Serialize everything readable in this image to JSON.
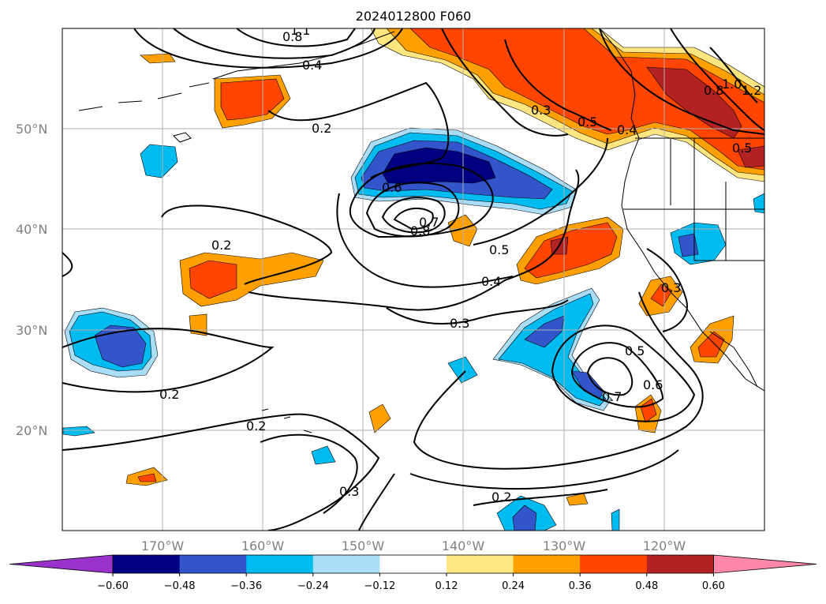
{
  "title": "2024012800 F060",
  "map": {
    "lon_range": [
      -180,
      -110
    ],
    "lat_range": [
      10,
      60
    ],
    "lon_ticks": [
      -170,
      -160,
      -150,
      -140,
      -130,
      -120
    ],
    "lat_ticks": [
      20,
      30,
      40,
      50
    ],
    "lon_tick_labels": [
      "170°W",
      "160°W",
      "150°W",
      "140°W",
      "130°W",
      "120°W"
    ],
    "lat_tick_labels": [
      "20°N",
      "30°N",
      "40°N",
      "50°N"
    ],
    "gridlines": true,
    "contour_labels": [
      "0.8",
      "1.1",
      "0.4",
      "0.2",
      "0.6",
      "0.8",
      "0.7",
      "0.2",
      "0.5",
      "0.4",
      "0.3",
      "0.5",
      "0.6",
      "0.7",
      "0.2",
      "0.2",
      "0.3",
      "0.2",
      "0.3",
      "0.5",
      "0.8",
      "1.0",
      "1.2",
      "0.4",
      "0.5",
      "0.3"
    ]
  },
  "colorbar": {
    "levels": [
      -0.6,
      -0.48,
      -0.36,
      -0.24,
      -0.12,
      0.12,
      0.24,
      0.36,
      0.48,
      0.6
    ],
    "tick_labels": [
      "−0.60",
      "−0.48",
      "−0.36",
      "−0.24",
      "−0.12",
      "0.12",
      "0.24",
      "0.36",
      "0.48",
      "0.60"
    ],
    "colors": [
      "#9933cc",
      "#000080",
      "#3355cc",
      "#00bbf0",
      "#aaddf8",
      "#ffffff",
      "#ffe680",
      "#ffa000",
      "#ff4500",
      "#b22222",
      "#ff88aa"
    ],
    "extend": "both"
  }
}
